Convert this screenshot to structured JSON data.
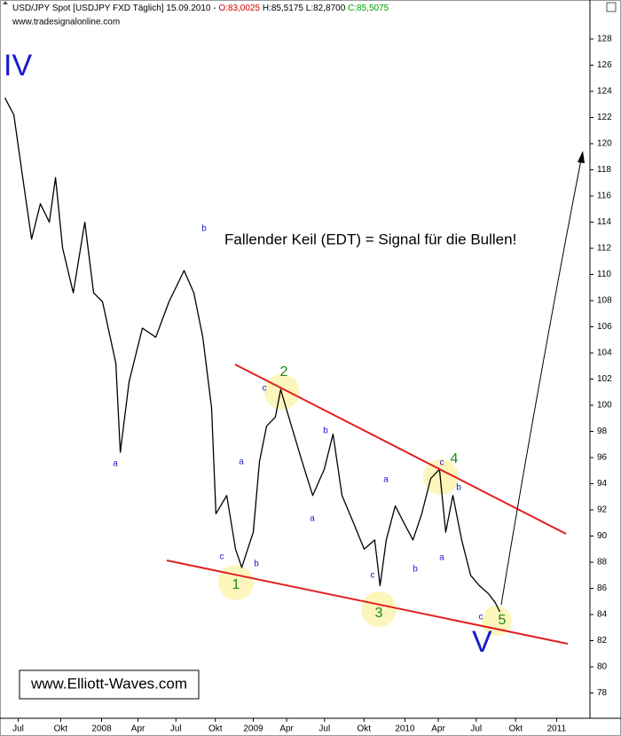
{
  "chart_data": {
    "type": "line",
    "header": [
      "USD/JPY Spot [USDJPY FXD  Täglich] 15.09.2010 - ",
      "O:83,0025",
      " H:85,5175 L:82,8700 ",
      "C:85,5075"
    ],
    "subtitle": "www.tradesignalonline.com",
    "annotation": "Fallender Keil (EDT) = Signal für die Bullen!",
    "watermark": "www.Elliott-Waves.com",
    "wave_labels": [
      "IV",
      "V",
      "1",
      "2",
      "3",
      "4",
      "5",
      "b",
      "a",
      "a",
      "c",
      "b",
      "c",
      "b",
      "a",
      "a",
      "c",
      "b",
      "c",
      "b",
      "a",
      "c"
    ],
    "color": "#000000",
    "x": [
      2007.363,
      2007.421,
      2007.48,
      2007.538,
      2007.596,
      2007.655,
      2007.696,
      2007.743,
      2007.813,
      2007.889,
      2007.947,
      2008.006,
      2008.094,
      2008.123,
      2008.181,
      2008.269,
      2008.357,
      2008.444,
      2008.544,
      2008.608,
      2008.667,
      2008.725,
      2008.754,
      2008.825,
      2008.883,
      2008.924,
      2009.0,
      2009.041,
      2009.088,
      2009.146,
      2009.181,
      2009.234,
      2009.322,
      2009.392,
      2009.468,
      2009.526,
      2009.585,
      2009.661,
      2009.731,
      2009.801,
      2009.836,
      2009.877,
      2009.936,
      2009.994,
      2010.053,
      2010.111,
      2010.17,
      2010.228,
      2010.269,
      2010.316,
      2010.374,
      2010.433,
      2010.491,
      2010.55,
      2010.596,
      2010.626
    ],
    "values": [
      123.5,
      122.2,
      117.4,
      112.7,
      115.4,
      114,
      117.4,
      112,
      108.6,
      114,
      108.6,
      107.9,
      103.2,
      96.4,
      101.8,
      105.9,
      105.2,
      107.9,
      110.3,
      108.6,
      105.2,
      99.8,
      91.7,
      93.1,
      89,
      87.6,
      90.3,
      95.7,
      98.4,
      99.1,
      101.2,
      99.1,
      95.7,
      93.1,
      95.1,
      97.8,
      93.1,
      91,
      89,
      89.7,
      86.2,
      89.7,
      92.3,
      91,
      89.7,
      91.7,
      94.4,
      95.1,
      90.3,
      93.1,
      89.7,
      87,
      86.2,
      85.6,
      84.9,
      84.2
    ],
    "xlim": [
      2007.33,
      2011.22
    ],
    "xticks": [
      {
        "value": 2007.45,
        "label": "Jul"
      },
      {
        "value": 2007.73,
        "label": "Okt"
      },
      {
        "value": 2008,
        "label": "2008"
      },
      {
        "value": 2008.24,
        "label": "Apr"
      },
      {
        "value": 2008.49,
        "label": "Jul"
      },
      {
        "value": 2008.75,
        "label": "Okt"
      },
      {
        "value": 2009,
        "label": "2009"
      },
      {
        "value": 2009.22,
        "label": "Apr"
      },
      {
        "value": 2009.47,
        "label": "Jul"
      },
      {
        "value": 2009.73,
        "label": "Okt"
      },
      {
        "value": 2010,
        "label": "2010"
      },
      {
        "value": 2010.22,
        "label": "Apr"
      },
      {
        "value": 2010.47,
        "label": "Jul"
      },
      {
        "value": 2010.73,
        "label": "Okt"
      },
      {
        "value": 2011,
        "label": "2011"
      }
    ],
    "ylim": [
      76,
      130
    ],
    "yticks": [
      78,
      80,
      82,
      84,
      86,
      88,
      90,
      92,
      94,
      96,
      98,
      100,
      102,
      104,
      106,
      108,
      110,
      112,
      114,
      116,
      118,
      120,
      122,
      124,
      126,
      128
    ]
  }
}
